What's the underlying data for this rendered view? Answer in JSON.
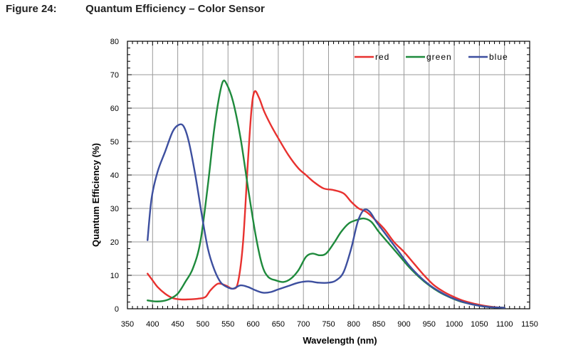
{
  "figure": {
    "number": "Figure 24:",
    "title": "Quantum Efficiency – Color Sensor"
  },
  "chart_data": {
    "type": "line",
    "xlabel": "Wavelength (nm)",
    "ylabel": "Quantum Efficiency (%)",
    "xlim": [
      350,
      1150
    ],
    "ylim": [
      0,
      80
    ],
    "xticks": [
      350,
      400,
      450,
      500,
      550,
      600,
      650,
      700,
      750,
      800,
      850,
      900,
      950,
      1000,
      1050,
      1100,
      1150
    ],
    "yticks": [
      0,
      10,
      20,
      30,
      40,
      50,
      60,
      70,
      80
    ],
    "grid": true,
    "legend_position": "top-right",
    "series": [
      {
        "name": "red",
        "color": "#e8312f",
        "points": [
          [
            390,
            10.5
          ],
          [
            400,
            8.5
          ],
          [
            410,
            6.5
          ],
          [
            425,
            4.5
          ],
          [
            440,
            3.2
          ],
          [
            455,
            2.8
          ],
          [
            470,
            2.8
          ],
          [
            490,
            3
          ],
          [
            505,
            3.5
          ],
          [
            515,
            5.5
          ],
          [
            530,
            7.5
          ],
          [
            545,
            7
          ],
          [
            560,
            6
          ],
          [
            570,
            8
          ],
          [
            580,
            20
          ],
          [
            590,
            45
          ],
          [
            597,
            60
          ],
          [
            603,
            65
          ],
          [
            612,
            63
          ],
          [
            622,
            59
          ],
          [
            635,
            55
          ],
          [
            650,
            51
          ],
          [
            670,
            46
          ],
          [
            690,
            42
          ],
          [
            705,
            40
          ],
          [
            720,
            38
          ],
          [
            740,
            36
          ],
          [
            760,
            35.5
          ],
          [
            780,
            34.5
          ],
          [
            795,
            32
          ],
          [
            810,
            30
          ],
          [
            825,
            29
          ],
          [
            840,
            27
          ],
          [
            860,
            24
          ],
          [
            880,
            20
          ],
          [
            900,
            17
          ],
          [
            920,
            13.5
          ],
          [
            940,
            10
          ],
          [
            960,
            7
          ],
          [
            980,
            5
          ],
          [
            1000,
            3.5
          ],
          [
            1020,
            2.3
          ],
          [
            1040,
            1.5
          ],
          [
            1060,
            0.9
          ],
          [
            1080,
            0.5
          ],
          [
            1100,
            0.3
          ]
        ]
      },
      {
        "name": "green",
        "color": "#1e8a3c",
        "points": [
          [
            390,
            2.5
          ],
          [
            405,
            2.2
          ],
          [
            420,
            2.3
          ],
          [
            435,
            3
          ],
          [
            450,
            4.5
          ],
          [
            465,
            8
          ],
          [
            480,
            12
          ],
          [
            495,
            20
          ],
          [
            510,
            37
          ],
          [
            522,
            53
          ],
          [
            532,
            63
          ],
          [
            540,
            68
          ],
          [
            548,
            67
          ],
          [
            560,
            62
          ],
          [
            575,
            51
          ],
          [
            590,
            36
          ],
          [
            605,
            22
          ],
          [
            618,
            13
          ],
          [
            630,
            9.5
          ],
          [
            645,
            8.5
          ],
          [
            660,
            8
          ],
          [
            675,
            9
          ],
          [
            690,
            11.5
          ],
          [
            705,
            15.5
          ],
          [
            718,
            16.5
          ],
          [
            732,
            16
          ],
          [
            745,
            16.5
          ],
          [
            760,
            19.5
          ],
          [
            775,
            23
          ],
          [
            790,
            25.5
          ],
          [
            805,
            26.5
          ],
          [
            820,
            27
          ],
          [
            835,
            26
          ],
          [
            850,
            23
          ],
          [
            870,
            19.5
          ],
          [
            890,
            16
          ],
          [
            910,
            12.5
          ],
          [
            930,
            9.5
          ],
          [
            950,
            7
          ],
          [
            970,
            5
          ],
          [
            990,
            3.5
          ],
          [
            1010,
            2.3
          ],
          [
            1030,
            1.5
          ],
          [
            1050,
            0.9
          ],
          [
            1070,
            0.5
          ],
          [
            1100,
            0.3
          ]
        ]
      },
      {
        "name": "blue",
        "color": "#3d4f9f",
        "points": [
          [
            390,
            20.5
          ],
          [
            398,
            33
          ],
          [
            410,
            41
          ],
          [
            425,
            47
          ],
          [
            440,
            53
          ],
          [
            452,
            55
          ],
          [
            462,
            54.5
          ],
          [
            472,
            50
          ],
          [
            485,
            40
          ],
          [
            498,
            28
          ],
          [
            510,
            18
          ],
          [
            522,
            12
          ],
          [
            535,
            8
          ],
          [
            548,
            6.5
          ],
          [
            560,
            6
          ],
          [
            575,
            7
          ],
          [
            590,
            6.5
          ],
          [
            605,
            5.5
          ],
          [
            620,
            4.8
          ],
          [
            635,
            5
          ],
          [
            650,
            5.8
          ],
          [
            670,
            6.8
          ],
          [
            690,
            7.8
          ],
          [
            710,
            8.2
          ],
          [
            730,
            7.8
          ],
          [
            750,
            7.8
          ],
          [
            765,
            8.5
          ],
          [
            780,
            11
          ],
          [
            795,
            18
          ],
          [
            808,
            26
          ],
          [
            820,
            29.5
          ],
          [
            832,
            29
          ],
          [
            845,
            26
          ],
          [
            860,
            23
          ],
          [
            875,
            20
          ],
          [
            890,
            17
          ],
          [
            910,
            13
          ],
          [
            930,
            9.8
          ],
          [
            950,
            7.2
          ],
          [
            970,
            5.2
          ],
          [
            990,
            3.6
          ],
          [
            1010,
            2.4
          ],
          [
            1030,
            1.5
          ],
          [
            1050,
            0.9
          ],
          [
            1070,
            0.5
          ],
          [
            1100,
            0.3
          ]
        ]
      }
    ]
  }
}
